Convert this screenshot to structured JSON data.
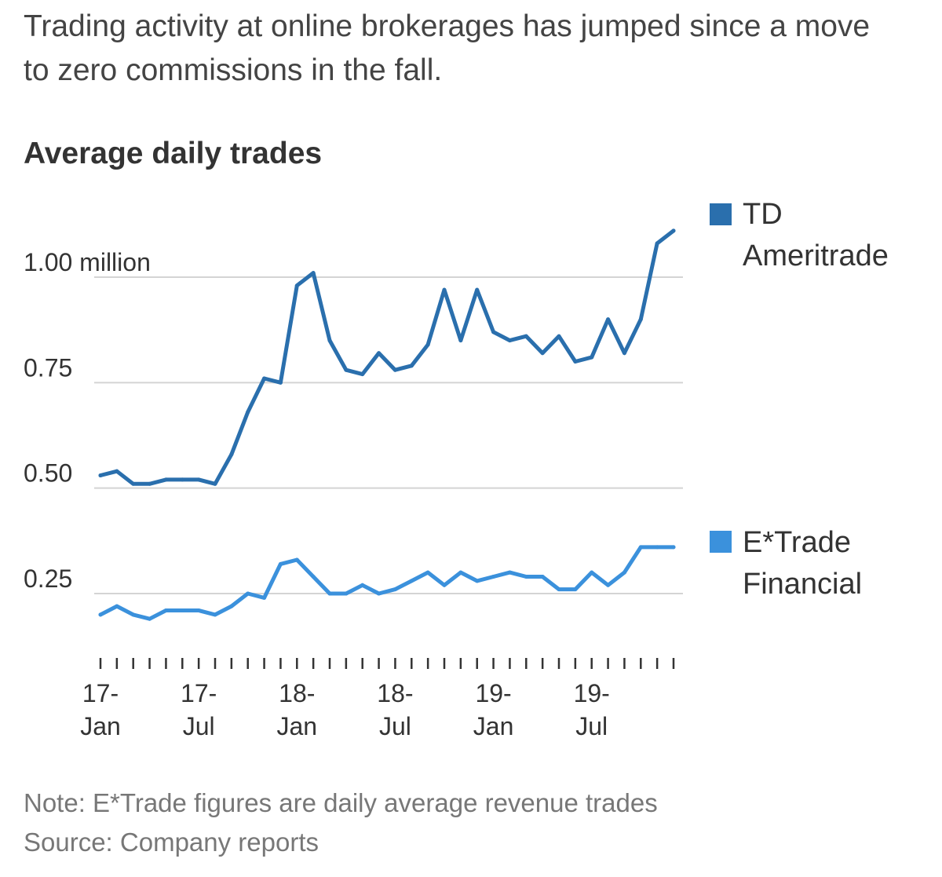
{
  "dek": "Trading activity at online brokerages has jumped since a move to zero commissions in the fall.",
  "note": "Note: E*Trade figures are daily average revenue trades",
  "source": "Source: Company reports",
  "chart_data": {
    "type": "line",
    "title": "Average daily trades",
    "xlabel": "",
    "ylabel": "",
    "ylim": [
      0.1,
      1.12
    ],
    "grid": true,
    "yticks": [
      {
        "value": 1.0,
        "label": "1.00 million"
      },
      {
        "value": 0.75,
        "label": "0.75"
      },
      {
        "value": 0.5,
        "label": "0.50"
      },
      {
        "value": 0.25,
        "label": "0.25"
      }
    ],
    "x_tick_labels": [
      {
        "index": 0,
        "line1": "17-",
        "line2": "Jan"
      },
      {
        "index": 6,
        "line1": "17-",
        "line2": "Jul"
      },
      {
        "index": 12,
        "line1": "18-",
        "line2": "Jan"
      },
      {
        "index": 18,
        "line1": "18-",
        "line2": "Jul"
      },
      {
        "index": 24,
        "line1": "19-",
        "line2": "Jan"
      },
      {
        "index": 30,
        "line1": "19-",
        "line2": "Jul"
      }
    ],
    "x": [
      "2017-01",
      "2017-02",
      "2017-03",
      "2017-04",
      "2017-05",
      "2017-06",
      "2017-07",
      "2017-08",
      "2017-09",
      "2017-10",
      "2017-11",
      "2017-12",
      "2018-01",
      "2018-02",
      "2018-03",
      "2018-04",
      "2018-05",
      "2018-06",
      "2018-07",
      "2018-08",
      "2018-09",
      "2018-10",
      "2018-11",
      "2018-12",
      "2019-01",
      "2019-02",
      "2019-03",
      "2019-04",
      "2019-05",
      "2019-06",
      "2019-07",
      "2019-08",
      "2019-09",
      "2019-10",
      "2019-11",
      "2019-12"
    ],
    "series": [
      {
        "name": "TD Ameritrade",
        "legend_line1": "TD",
        "legend_line2": "Ameritrade",
        "color": "#2a6fad",
        "values": [
          0.53,
          0.54,
          0.51,
          0.51,
          0.52,
          0.52,
          0.52,
          0.51,
          0.58,
          0.68,
          0.76,
          0.75,
          0.98,
          1.01,
          0.85,
          0.78,
          0.77,
          0.82,
          0.78,
          0.79,
          0.84,
          0.97,
          0.85,
          0.97,
          0.87,
          0.85,
          0.86,
          0.82,
          0.86,
          0.8,
          0.81,
          0.9,
          0.82,
          0.9,
          1.08,
          1.11
        ]
      },
      {
        "name": "E*Trade Financial",
        "legend_line1": "E*Trade",
        "legend_line2": "Financial",
        "color": "#3b91dc",
        "values": [
          0.2,
          0.22,
          0.2,
          0.19,
          0.21,
          0.21,
          0.21,
          0.2,
          0.22,
          0.25,
          0.24,
          0.32,
          0.33,
          0.29,
          0.25,
          0.25,
          0.27,
          0.25,
          0.26,
          0.28,
          0.3,
          0.27,
          0.3,
          0.28,
          0.29,
          0.3,
          0.29,
          0.29,
          0.26,
          0.26,
          0.3,
          0.27,
          0.3,
          0.36,
          0.36,
          0.36
        ]
      }
    ]
  }
}
